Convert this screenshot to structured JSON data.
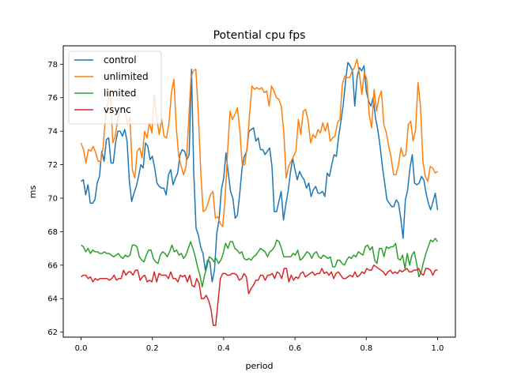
{
  "chart_data": {
    "type": "line",
    "title": "Potential cpu fps",
    "xlabel": "period",
    "ylabel": "ms",
    "xlim": [
      -0.05,
      1.05
    ],
    "ylim": [
      61.7,
      79.1
    ],
    "x_ticks": [
      0.0,
      0.2,
      0.4,
      0.6,
      0.8,
      1.0
    ],
    "x_tick_labels": [
      "0.0",
      "0.2",
      "0.4",
      "0.6",
      "0.8",
      "1.0"
    ],
    "y_ticks": [
      62,
      64,
      66,
      68,
      70,
      72,
      74,
      76,
      78
    ],
    "y_tick_labels": [
      "62",
      "64",
      "66",
      "68",
      "70",
      "72",
      "74",
      "76",
      "78"
    ],
    "grid": false,
    "legend_position": "top-left",
    "x_start": 0.0,
    "x_end": 1.0,
    "series": [
      {
        "name": "control",
        "color": "#1f77b4",
        "values": [
          71.0,
          71.1,
          70.2,
          70.8,
          69.7,
          69.7,
          69.9,
          70.9,
          71.3,
          72.8,
          72.2,
          73.5,
          73.6,
          72.1,
          72.1,
          73.3,
          74.0,
          74.0,
          73.7,
          74.1,
          73.4,
          71.0,
          69.8,
          70.3,
          70.7,
          71.3,
          72.0,
          71.8,
          73.3,
          73.1,
          72.3,
          72.5,
          71.8,
          70.9,
          70.7,
          70.6,
          70.6,
          70.2,
          71.4,
          71.7,
          70.8,
          71.2,
          71.5,
          72.6,
          72.9,
          72.8,
          72.3,
          72.6,
          77.7,
          71.5,
          68.2,
          67.8,
          67.1,
          66.7,
          65.7,
          66.3,
          66.2,
          65.0,
          65.7,
          67.9,
          68.7,
          70.5,
          71.2,
          72.7,
          71.5,
          70.4,
          70.0,
          68.8,
          69.0,
          70.3,
          71.8,
          72.5,
          72.8,
          74.0,
          74.1,
          74.2,
          73.4,
          73.6,
          72.9,
          72.9,
          72.6,
          72.8,
          73.0,
          71.9,
          69.2,
          69.2,
          69.8,
          70.4,
          68.7,
          69.6,
          70.4,
          71.5,
          72.4,
          71.7,
          71.1,
          71.6,
          71.3,
          71.1,
          70.6,
          70.9,
          70.1,
          70.5,
          70.7,
          70.3,
          70.3,
          70.4,
          70.1,
          71.5,
          71.3,
          72.0,
          72.6,
          72.5,
          73.7,
          74.6,
          75.6,
          77.0,
          78.1,
          77.9,
          77.6,
          75.5,
          77.2,
          77.8,
          77.6,
          77.9,
          76.4,
          75.8,
          75.5,
          76.0,
          74.8,
          74.1,
          73.1,
          71.9,
          70.9,
          69.9,
          69.7,
          69.5,
          69.5,
          69.9,
          69.7,
          68.8,
          67.6,
          69.9,
          70.5,
          71.8,
          72.6,
          70.9,
          70.8,
          70.9,
          71.3,
          71.1,
          70.3,
          69.7,
          69.3,
          69.8,
          70.3,
          69.3
        ]
      },
      {
        "name": "unlimited",
        "color": "#ff7f0e",
        "values": [
          73.3,
          72.9,
          72.1,
          72.9,
          72.8,
          73.1,
          72.7,
          72.2,
          72.2,
          73.0,
          74.9,
          75.7,
          76.4,
          73.3,
          73.7,
          74.7,
          75.3,
          75.4,
          75.3,
          74.5,
          74.8,
          71.7,
          71.2,
          72.8,
          73.0,
          72.4,
          74.0,
          73.6,
          74.5,
          73.9,
          76.2,
          74.8,
          73.8,
          74.7,
          73.7,
          73.6,
          74.5,
          76.3,
          77.1,
          74.2,
          72.5,
          71.9,
          71.4,
          71.9,
          74.4,
          77.2,
          77.6,
          77.7,
          75.1,
          71.6,
          69.2,
          69.3,
          69.7,
          70.2,
          70.4,
          68.8,
          68.9,
          68.5,
          68.3,
          70.0,
          72.8,
          75.2,
          74.7,
          75.0,
          75.4,
          74.1,
          72.0,
          72.0,
          73.0,
          75.0,
          76.7,
          76.5,
          76.6,
          76.5,
          76.6,
          76.3,
          76.4,
          75.5,
          76.7,
          76.4,
          76.0,
          75.9,
          75.5,
          74.0,
          71.2,
          71.9,
          72.2,
          72.5,
          72.8,
          74.7,
          73.8,
          75.2,
          75.3,
          74.6,
          73.3,
          73.8,
          73.6,
          74.1,
          73.9,
          74.5,
          74.0,
          74.5,
          73.4,
          73.6,
          73.7,
          74.5,
          74.7,
          76.8,
          77.3,
          77.2,
          77.2,
          77.6,
          77.8,
          78.3,
          77.4,
          76.2,
          77.5,
          77.1,
          75.0,
          74.2,
          76.5,
          75.2,
          76.0,
          76.4,
          74.4,
          73.9,
          73.1,
          72.4,
          71.4,
          71.4,
          72.0,
          73.0,
          72.5,
          72.6,
          74.4,
          74.6,
          73.4,
          74.1,
          76.9,
          75.5,
          72.2,
          71.3,
          71.0,
          71.9,
          71.8,
          71.5,
          71.6
        ]
      },
      {
        "name": "limited",
        "color": "#2ca02c",
        "values": [
          67.2,
          67.1,
          66.8,
          67.0,
          66.7,
          66.9,
          66.8,
          66.8,
          66.7,
          66.7,
          66.8,
          66.7,
          66.7,
          66.6,
          66.5,
          66.6,
          66.7,
          66.5,
          66.4,
          66.6,
          66.5,
          66.6,
          67.2,
          67.2,
          67.1,
          66.5,
          66.3,
          66.2,
          66.6,
          66.9,
          66.9,
          66.4,
          66.2,
          66.1,
          66.6,
          66.8,
          66.7,
          66.5,
          66.8,
          67.2,
          66.8,
          66.9,
          66.6,
          66.7,
          66.4,
          66.6,
          67.0,
          67.4,
          67.0,
          66.5,
          65.9,
          65.4,
          64.7,
          65.4,
          65.9,
          66.5,
          66.4,
          66.2,
          66.4,
          66.1,
          66.3,
          66.7,
          67.3,
          67.0,
          67.4,
          67.4,
          67.0,
          66.9,
          66.7,
          66.8,
          66.4,
          66.3,
          66.4,
          66.3,
          66.5,
          66.6,
          66.8,
          67.0,
          66.9,
          66.8,
          66.5,
          66.8,
          66.9,
          67.1,
          67.5,
          67.4,
          67.0,
          66.5,
          66.5,
          66.5,
          66.5,
          66.7,
          66.6,
          66.9,
          66.3,
          66.4,
          66.6,
          66.8,
          66.7,
          66.4,
          66.7,
          66.8,
          66.5,
          66.4,
          66.6,
          66.5,
          66.4,
          66.5,
          65.9,
          65.9,
          66.3,
          66.3,
          66.1,
          66.0,
          66.3,
          66.5,
          66.4,
          66.6,
          66.5,
          66.8,
          66.7,
          66.6,
          67.1,
          67.2,
          66.9,
          67.1,
          66.3,
          66.1,
          67.0,
          67.0,
          66.5,
          67.1,
          67.0,
          67.1,
          67.1,
          67.3,
          66.4,
          66.3,
          66.6,
          65.8,
          66.7,
          66.0,
          66.6,
          66.8,
          66.1,
          65.3,
          65.6,
          66.2,
          66.7,
          67.1,
          67.5,
          67.4,
          67.6,
          67.4
        ]
      },
      {
        "name": "vsync",
        "color": "#d62728",
        "values": [
          65.3,
          65.4,
          65.4,
          65.2,
          65.3,
          65.0,
          65.2,
          65.1,
          65.2,
          65.2,
          65.2,
          65.2,
          65.1,
          65.2,
          65.4,
          65.1,
          65.2,
          65.2,
          65.7,
          65.4,
          65.6,
          65.6,
          65.4,
          65.7,
          65.7,
          65.1,
          65.3,
          65.4,
          65.0,
          65.1,
          65.0,
          65.6,
          65.0,
          65.5,
          65.4,
          65.4,
          65.4,
          65.2,
          65.6,
          65.2,
          65.2,
          65.0,
          65.4,
          65.3,
          65.4,
          65.0,
          65.4,
          64.8,
          64.7,
          65.2,
          64.9,
          64.0,
          64.0,
          64.2,
          63.9,
          63.4,
          62.4,
          62.4,
          63.8,
          65.2,
          65.5,
          65.5,
          65.4,
          65.4,
          65.5,
          65.5,
          65.4,
          65.1,
          65.2,
          65.5,
          65.3,
          64.3,
          64.6,
          64.8,
          65.1,
          65.1,
          65.4,
          65.4,
          65.1,
          65.4,
          65.4,
          65.5,
          65.2,
          65.6,
          65.5,
          65.2,
          65.8,
          65.8,
          65.0,
          65.4,
          65.1,
          65.3,
          65.2,
          65.5,
          65.6,
          65.3,
          65.4,
          65.5,
          65.6,
          65.4,
          65.5,
          65.5,
          65.8,
          65.5,
          65.6,
          65.4,
          65.6,
          65.2,
          65.5,
          65.6,
          65.4,
          65.2,
          65.2,
          65.3,
          65.4,
          65.3,
          65.6,
          65.3,
          65.4,
          65.6,
          65.5,
          65.8,
          65.7,
          65.7,
          66.0,
          65.9,
          65.8,
          65.7,
          65.6,
          65.4,
          65.6,
          65.7,
          65.5,
          65.6,
          65.5,
          65.7,
          65.6,
          65.7,
          65.8,
          65.6,
          65.6,
          65.7,
          65.7,
          65.8,
          65.5,
          65.4,
          65.8,
          65.8,
          65.7,
          65.4,
          65.7,
          65.7
        ]
      }
    ]
  }
}
